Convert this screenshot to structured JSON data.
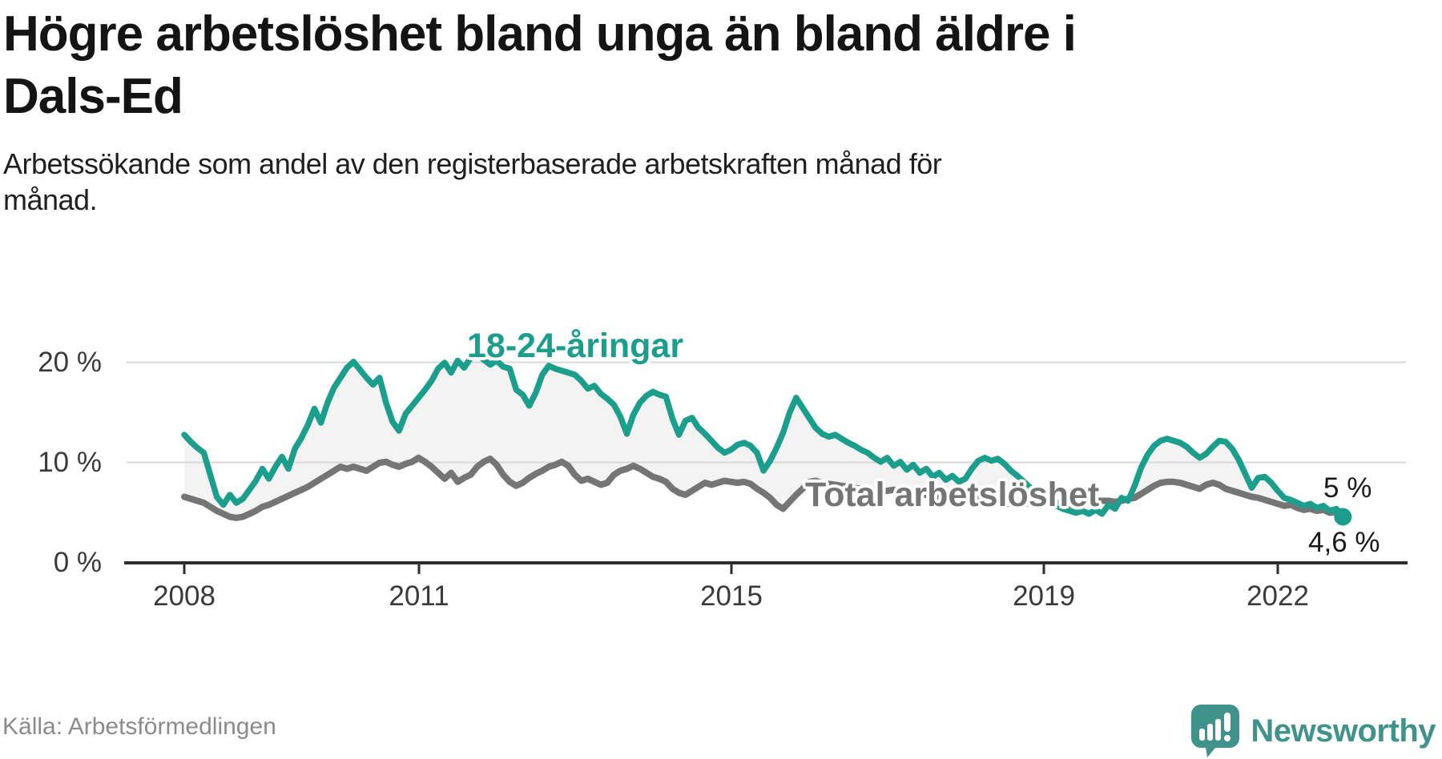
{
  "title": {
    "lines": [
      "Högre arbetslöshet bland unga än bland äldre i",
      "Dals-Ed"
    ]
  },
  "subtitle": {
    "lines": [
      "Arbetssökande som andel av den registerbaserade arbetskraften månad för",
      "månad."
    ]
  },
  "chart_data": {
    "type": "line",
    "title": "Högre arbetslöshet bland unga än bland äldre i Dals-Ed",
    "subtitle": "Arbetssökande som andel av den registerbaserade arbetskraften månad för månad.",
    "frequency": "monthly",
    "x_start": "2008-01",
    "x_end": "2022-11",
    "x_ticks": [
      "2008",
      "2011",
      "2015",
      "2019",
      "2022"
    ],
    "y_ticks": [
      "20 %",
      "10 %",
      "0 %"
    ],
    "ylim": [
      0,
      24
    ],
    "grid": true,
    "legend_position": "inline-labels",
    "series": [
      {
        "name": "18-24-åringar",
        "color": "#1b9e8c",
        "end_label": "4,6 %",
        "values": [
          12.8,
          12.1,
          11.5,
          11.0,
          8.8,
          6.6,
          5.8,
          6.8,
          6.0,
          6.4,
          7.3,
          8.2,
          9.4,
          8.4,
          9.6,
          10.6,
          9.4,
          11.4,
          12.5,
          13.8,
          15.4,
          14.0,
          16.0,
          17.5,
          18.5,
          19.5,
          20.1,
          19.3,
          18.5,
          17.8,
          18.5,
          16.0,
          14.1,
          13.2,
          14.9,
          15.7,
          16.5,
          17.3,
          18.2,
          19.4,
          20.0,
          19.0,
          20.2,
          19.5,
          20.5,
          20.9,
          20.3,
          19.8,
          20.2,
          19.6,
          19.4,
          17.3,
          16.8,
          15.7,
          17.0,
          18.8,
          19.7,
          19.4,
          19.2,
          19.0,
          18.8,
          18.2,
          17.4,
          17.7,
          16.9,
          16.4,
          15.8,
          14.6,
          12.9,
          14.8,
          16.0,
          16.7,
          17.1,
          16.8,
          16.6,
          14.4,
          12.8,
          14.2,
          14.5,
          13.5,
          12.9,
          12.2,
          11.5,
          11.0,
          11.3,
          11.8,
          12.0,
          11.7,
          11.0,
          9.2,
          10.2,
          11.5,
          13.0,
          15.0,
          16.5,
          15.5,
          14.5,
          13.5,
          12.9,
          12.6,
          12.8,
          12.4,
          12.0,
          11.7,
          11.3,
          11.0,
          10.5,
          10.1,
          10.5,
          9.7,
          10.1,
          9.3,
          9.8,
          9.0,
          9.4,
          8.6,
          9.0,
          8.3,
          8.7,
          8.1,
          8.4,
          9.4,
          10.2,
          10.5,
          10.2,
          10.4,
          9.9,
          9.2,
          8.7,
          8.1,
          7.5,
          6.9,
          6.4,
          6.0,
          5.7,
          5.4,
          5.2,
          5.0,
          5.2,
          4.9,
          5.3,
          4.9,
          5.8,
          5.4,
          6.5,
          6.2,
          7.7,
          9.5,
          10.8,
          11.7,
          12.2,
          12.4,
          12.2,
          12.0,
          11.6,
          11.0,
          10.5,
          10.9,
          11.6,
          12.2,
          12.1,
          11.4,
          10.3,
          8.9,
          7.5,
          8.5,
          8.6,
          8.0,
          7.2,
          6.5,
          6.3,
          6.0,
          5.7,
          5.9,
          5.5,
          5.7,
          5.2,
          5.4,
          4.6
        ]
      },
      {
        "name": "Total arbetslöshet",
        "color": "#757575",
        "end_label": "5 %",
        "values": [
          6.6,
          6.4,
          6.2,
          6.0,
          5.6,
          5.2,
          4.9,
          4.6,
          4.5,
          4.6,
          4.9,
          5.2,
          5.6,
          5.8,
          6.1,
          6.4,
          6.7,
          7.0,
          7.3,
          7.6,
          8.0,
          8.4,
          8.8,
          9.2,
          9.6,
          9.4,
          9.6,
          9.4,
          9.2,
          9.6,
          10.0,
          10.1,
          9.8,
          9.6,
          9.9,
          10.1,
          10.5,
          10.1,
          9.6,
          9.0,
          8.4,
          9.0,
          8.1,
          8.5,
          8.8,
          9.6,
          10.1,
          10.4,
          9.8,
          8.8,
          8.1,
          7.7,
          8.0,
          8.5,
          8.9,
          9.2,
          9.6,
          9.8,
          10.1,
          9.7,
          8.8,
          8.2,
          8.4,
          8.1,
          7.8,
          8.0,
          8.8,
          9.2,
          9.4,
          9.7,
          9.4,
          9.0,
          8.6,
          8.4,
          8.1,
          7.4,
          7.0,
          6.8,
          7.2,
          7.6,
          8.0,
          7.8,
          8.0,
          8.2,
          8.1,
          8.0,
          8.1,
          7.9,
          7.4,
          7.0,
          6.5,
          5.8,
          5.4,
          6.1,
          6.8,
          7.4,
          8.1,
          8.2,
          8.0,
          7.9,
          7.8,
          7.7,
          7.6,
          7.5,
          7.4,
          7.3,
          7.2,
          7.1,
          7.2,
          7.3,
          7.2,
          7.1,
          7.0,
          6.9,
          6.8,
          6.7,
          6.6,
          6.5,
          6.4,
          6.3,
          6.4,
          6.5,
          6.4,
          6.3,
          6.2,
          6.1,
          6.0,
          5.9,
          5.8,
          5.9,
          6.0,
          6.1,
          6.2,
          6.1,
          6.0,
          5.9,
          5.8,
          5.9,
          6.0,
          6.1,
          6.2,
          6.2,
          6.2,
          6.1,
          6.2,
          6.4,
          6.5,
          6.9,
          7.3,
          7.7,
          8.0,
          8.1,
          8.1,
          8.0,
          7.8,
          7.6,
          7.4,
          7.8,
          8.0,
          7.8,
          7.4,
          7.2,
          7.0,
          6.8,
          6.6,
          6.5,
          6.3,
          6.1,
          5.9,
          5.7,
          5.8,
          5.5,
          5.3,
          5.4,
          5.2,
          5.3,
          5.0,
          5.1,
          5.0
        ]
      }
    ]
  },
  "footer": {
    "source": "Källa: Arbetsförmedlingen",
    "brand": "Newsworthy"
  },
  "colors": {
    "youth_line": "#1b9e8c",
    "total_line": "#757575",
    "band_fill": "#f3f3f3",
    "gridline": "#d8d8d8",
    "axis": "#2e2e2e",
    "brand_teal": "#3f938b"
  }
}
